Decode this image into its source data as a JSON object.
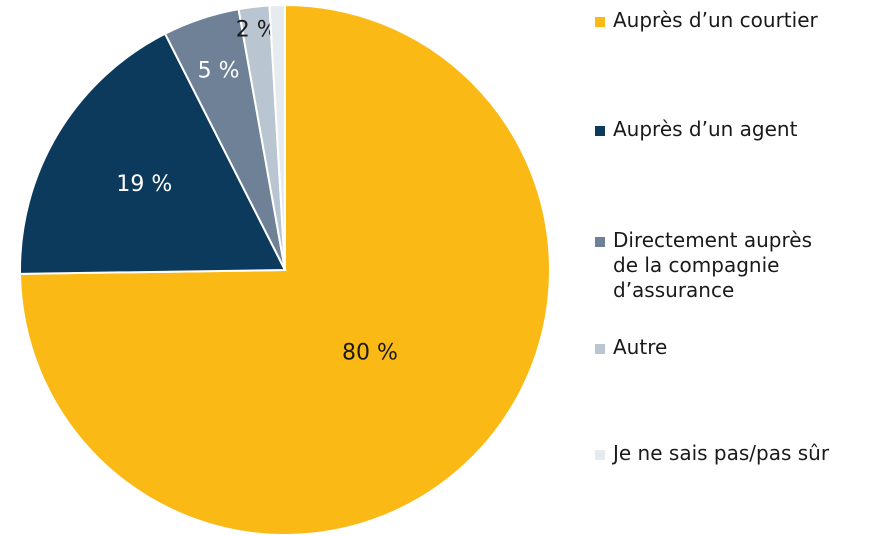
{
  "chart_data": {
    "type": "pie",
    "categories": [
      "Auprès d’un courtier",
      "Auprès d’un agent",
      "Directement auprès de la compagnie d’assurance",
      "Autre",
      "Je ne sais pas/pas sûr"
    ],
    "values": [
      80,
      19,
      5,
      2,
      1
    ],
    "value_labels": [
      "80 %",
      "19 %",
      "5 %",
      "2 %",
      null
    ],
    "colors": [
      "#fbb915",
      "#0b3a5c",
      "#6e8196",
      "#b9c5d1",
      "#e6ebf0"
    ],
    "legend": "right"
  }
}
